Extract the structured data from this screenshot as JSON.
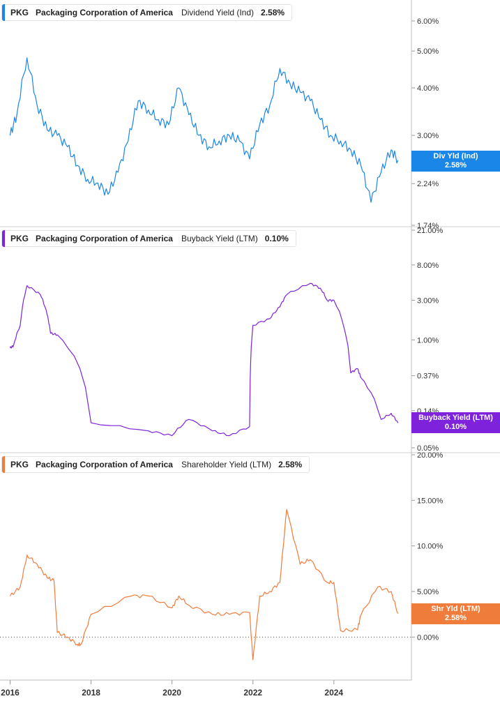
{
  "chart_data": [
    {
      "type": "line",
      "ticker": "PKG",
      "company": "Packaging Corporation of America",
      "metric": "Dividend Yield (Ind)",
      "current_value": "2.58%",
      "badge_label": "Div Yld (Ind)",
      "badge_value": "2.58%",
      "color": "#1a86e8",
      "y_scale": "log",
      "y_ticks": [
        "1.74%",
        "2.24%",
        "3.00%",
        "4.00%",
        "5.00%",
        "6.00%"
      ],
      "x": [
        "2016-01",
        "2016-03",
        "2016-06",
        "2016-09",
        "2016-12",
        "2017-03",
        "2017-06",
        "2017-09",
        "2017-12",
        "2018-03",
        "2018-06",
        "2018-09",
        "2018-12",
        "2019-03",
        "2019-06",
        "2019-09",
        "2019-12",
        "2020-03",
        "2020-06",
        "2020-09",
        "2020-12",
        "2021-03",
        "2021-06",
        "2021-09",
        "2021-12",
        "2022-03",
        "2022-06",
        "2022-09",
        "2022-12",
        "2023-03",
        "2023-06",
        "2023-09",
        "2023-12",
        "2024-03",
        "2024-06",
        "2024-09",
        "2024-12",
        "2025-03",
        "2025-06",
        "2025-08"
      ],
      "y": [
        3.0,
        3.4,
        4.8,
        3.6,
        3.1,
        3.0,
        2.8,
        2.5,
        2.3,
        2.25,
        2.1,
        2.4,
        2.9,
        3.7,
        3.5,
        3.3,
        3.2,
        4.0,
        3.4,
        3.0,
        2.8,
        2.9,
        3.0,
        2.9,
        2.6,
        3.2,
        3.6,
        4.5,
        4.1,
        3.9,
        3.7,
        3.3,
        3.0,
        2.9,
        2.75,
        2.5,
        2.0,
        2.4,
        2.75,
        2.58
      ]
    },
    {
      "type": "line",
      "ticker": "PKG",
      "company": "Packaging Corporation of America",
      "metric": "Buyback Yield (LTM)",
      "current_value": "0.10%",
      "badge_label": "Buyback Yield (LTM)",
      "badge_value": "0.10%",
      "color": "#7e22dc",
      "y_scale": "log",
      "y_ticks": [
        "0.05%",
        "0.14%",
        "0.37%",
        "1.00%",
        "3.00%",
        "8.00%",
        "21.00%"
      ],
      "x": [
        "2016-01",
        "2016-02",
        "2016-04",
        "2016-06",
        "2016-10",
        "2016-12",
        "2017-01",
        "2017-03",
        "2018-01",
        "2019-06",
        "2020-01",
        "2020-06",
        "2021-01",
        "2021-06",
        "2021-12",
        "2022-01",
        "2022-06",
        "2022-09",
        "2022-11",
        "2023-06",
        "2023-09",
        "2023-11",
        "2024-01",
        "2024-06",
        "2024-08",
        "2024-09",
        "2025-03",
        "2025-06",
        "2025-08"
      ],
      "y": [
        0.8,
        0.85,
        1.5,
        4.5,
        3.5,
        2.0,
        1.2,
        1.15,
        0.1,
        0.08,
        0.07,
        0.11,
        0.08,
        0.07,
        0.09,
        1.5,
        1.8,
        2.5,
        3.5,
        4.8,
        4.2,
        3.0,
        3.0,
        0.4,
        0.45,
        0.35,
        0.11,
        0.13,
        0.1
      ]
    },
    {
      "type": "line",
      "ticker": "PKG",
      "company": "Packaging Corporation of America",
      "metric": "Shareholder Yield (LTM)",
      "current_value": "2.58%",
      "badge_label": "Shr Yld (LTM)",
      "badge_value": "2.58%",
      "color": "#f07c3c",
      "y_scale": "linear",
      "ylim": [
        -2.5,
        20
      ],
      "y_ticks": [
        "0.00%",
        "5.00%",
        "10.00%",
        "15.00%",
        "20.00%"
      ],
      "zero_line": true,
      "x": [
        "2016-01",
        "2016-04",
        "2016-06",
        "2016-09",
        "2016-12",
        "2017-02",
        "2017-03",
        "2017-06",
        "2017-09",
        "2017-10",
        "2018-01",
        "2019-01",
        "2019-06",
        "2020-01",
        "2020-03",
        "2020-06",
        "2021-01",
        "2021-06",
        "2021-12",
        "2022-01",
        "2022-03",
        "2022-06",
        "2022-09",
        "2022-11",
        "2023-03",
        "2023-06",
        "2023-11",
        "2024-01",
        "2024-03",
        "2024-08",
        "2024-09",
        "2025-02",
        "2025-06",
        "2025-08"
      ],
      "y": [
        4.5,
        5.5,
        9.0,
        8.0,
        6.5,
        6.2,
        0.5,
        0.0,
        -0.8,
        -0.8,
        2.5,
        4.5,
        4.5,
        3.2,
        4.5,
        3.5,
        2.5,
        2.5,
        2.7,
        -2.5,
        4.5,
        5.0,
        6.0,
        14.0,
        8.0,
        8.5,
        6.0,
        6.0,
        0.7,
        0.8,
        2.4,
        5.5,
        5.0,
        2.58
      ]
    }
  ],
  "x_axis": {
    "range": [
      "2015-10",
      "2025-12"
    ],
    "ticks": [
      "2016",
      "2018",
      "2020",
      "2022",
      "2024"
    ]
  }
}
